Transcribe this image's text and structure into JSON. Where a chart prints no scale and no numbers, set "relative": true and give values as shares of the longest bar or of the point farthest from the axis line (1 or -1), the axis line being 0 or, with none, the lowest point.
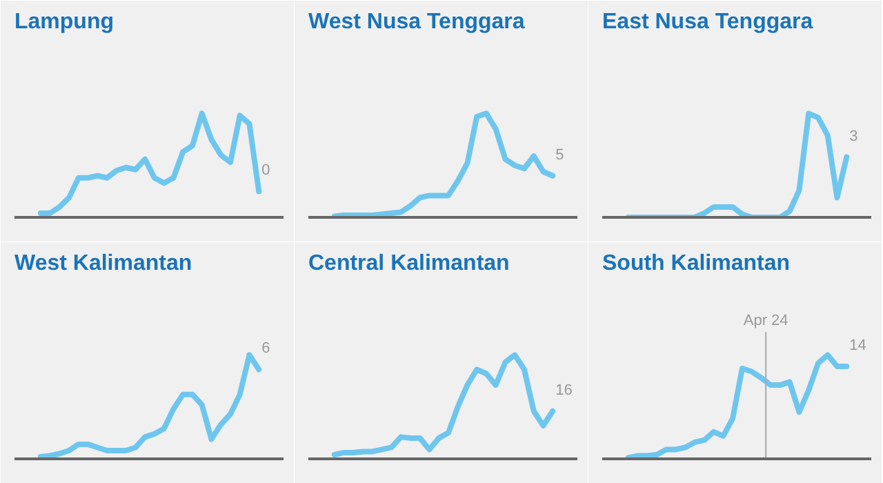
{
  "chart_data": [
    {
      "type": "line",
      "title": "Lampung",
      "relative": true,
      "color": "#6ec6ee",
      "annotations": [
        "0"
      ],
      "categories": [
        null,
        null,
        null,
        null,
        null,
        null,
        null,
        null,
        null,
        null,
        null,
        null,
        null,
        null,
        null,
        null,
        null,
        null,
        null,
        null,
        null,
        null,
        null,
        null
      ],
      "values": [
        0.04,
        0.04,
        0.1,
        0.19,
        0.38,
        0.38,
        0.4,
        0.38,
        0.45,
        0.48,
        0.46,
        0.56,
        0.38,
        0.33,
        0.38,
        0.63,
        0.69,
        1.0,
        0.75,
        0.6,
        0.53,
        0.98,
        0.9,
        0.25
      ]
    },
    {
      "type": "line",
      "title": "West Nusa Tenggara",
      "relative": true,
      "color": "#6ec6ee",
      "annotations": [
        "5"
      ],
      "categories": [
        null,
        null,
        null,
        null,
        null,
        null,
        null,
        null,
        null,
        null,
        null,
        null,
        null,
        null,
        null,
        null,
        null,
        null,
        null,
        null,
        null,
        null,
        null,
        null
      ],
      "values": [
        0.01,
        0.02,
        0.02,
        0.02,
        0.02,
        0.03,
        0.04,
        0.05,
        0.11,
        0.19,
        0.21,
        0.21,
        0.21,
        0.35,
        0.52,
        0.97,
        1,
        0.85,
        0.56,
        0.5,
        0.47,
        0.59,
        0.44,
        0.4
      ]
    },
    {
      "type": "line",
      "title": "East Nusa Tenggara",
      "relative": true,
      "color": "#6ec6ee",
      "annotations": [
        "3"
      ],
      "categories": [
        null,
        null,
        null,
        null,
        null,
        null,
        null,
        null,
        null,
        null,
        null,
        null,
        null,
        null,
        null,
        null,
        null,
        null,
        null,
        null,
        null,
        null,
        null,
        null
      ],
      "values": [
        0,
        0,
        0,
        0,
        0,
        0,
        0,
        0,
        0.04,
        0.1,
        0.1,
        0.1,
        0.03,
        0,
        0,
        0,
        0,
        0.06,
        0.26,
        1,
        0.96,
        0.79,
        0.19,
        0.58
      ]
    },
    {
      "type": "line",
      "title": "West Kalimantan",
      "relative": true,
      "color": "#6ec6ee",
      "annotations": [
        "6"
      ],
      "categories": [
        null,
        null,
        null,
        null,
        null,
        null,
        null,
        null,
        null,
        null,
        null,
        null,
        null,
        null,
        null,
        null,
        null,
        null,
        null,
        null,
        null,
        null,
        null,
        null
      ],
      "values": [
        0.02,
        0.03,
        0.05,
        0.08,
        0.14,
        0.14,
        0.11,
        0.08,
        0.08,
        0.08,
        0.11,
        0.21,
        0.24,
        0.29,
        0.48,
        0.62,
        0.62,
        0.52,
        0.19,
        0.33,
        0.43,
        0.62,
        1,
        0.86
      ]
    },
    {
      "type": "line",
      "title": "Central Kalimantan",
      "relative": true,
      "color": "#6ec6ee",
      "annotations": [
        "16"
      ],
      "categories": [
        null,
        null,
        null,
        null,
        null,
        null,
        null,
        null,
        null,
        null,
        null,
        null,
        null,
        null,
        null,
        null,
        null,
        null,
        null,
        null,
        null,
        null,
        null,
        null
      ],
      "values": [
        0.04,
        0.06,
        0.06,
        0.07,
        0.07,
        0.09,
        0.11,
        0.21,
        0.2,
        0.2,
        0.09,
        0.2,
        0.25,
        0.5,
        0.71,
        0.86,
        0.82,
        0.71,
        0.93,
        1,
        0.86,
        0.46,
        0.32,
        0.46
      ]
    },
    {
      "type": "line",
      "title": "South Kalimantan",
      "relative": true,
      "color": "#6ec6ee",
      "annotations": [
        "14",
        "Apr 24"
      ],
      "categories": [
        null,
        null,
        null,
        null,
        null,
        null,
        null,
        null,
        null,
        null,
        null,
        null,
        null,
        null,
        null,
        null,
        null,
        null,
        null,
        null,
        null,
        null,
        null,
        null
      ],
      "values": [
        0.01,
        0.03,
        0.03,
        0.04,
        0.09,
        0.09,
        0.11,
        0.16,
        0.18,
        0.26,
        0.22,
        0.39,
        0.87,
        0.84,
        0.78,
        0.71,
        0.71,
        0.74,
        0.45,
        0.66,
        0.92,
        1,
        0.89,
        0.89
      ]
    }
  ]
}
